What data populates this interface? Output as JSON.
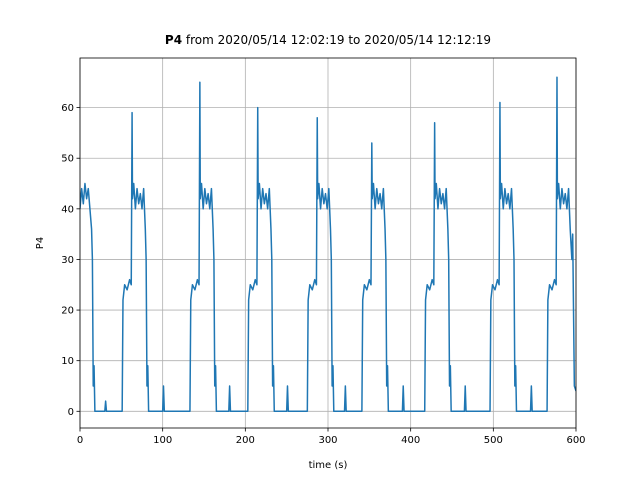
{
  "chart_data": {
    "type": "line",
    "title": [
      "P4",
      "from 2020/05/14 12:02:19 to 2020/05/14 12:12:19"
    ],
    "xlabel": "time (s)",
    "ylabel": "P4",
    "color": "#1f77b4",
    "grid": true,
    "xlim": [
      0,
      600
    ],
    "ylim": [
      -3.3,
      69.8
    ],
    "xticks": [
      0,
      100,
      200,
      300,
      400,
      500,
      600
    ],
    "yticks": [
      0,
      10,
      20,
      30,
      40,
      50,
      60
    ],
    "x": [
      0,
      2,
      4,
      6,
      8,
      10,
      12,
      14,
      15,
      16,
      17,
      18,
      30,
      31,
      32,
      50,
      51,
      52,
      54,
      57,
      60,
      62,
      63,
      63.5,
      65,
      67,
      69,
      71,
      73,
      75,
      77,
      79,
      80,
      81,
      82,
      83,
      100,
      101,
      102,
      120,
      133,
      134,
      136,
      139,
      142,
      144,
      145,
      145.5,
      147,
      149,
      151,
      153,
      155,
      157,
      159,
      161,
      162,
      163,
      164,
      165,
      180,
      181,
      182,
      202,
      203,
      204,
      206,
      209,
      212,
      214,
      215,
      215.5,
      217,
      219,
      221,
      223,
      225,
      227,
      229,
      231,
      232,
      233,
      234,
      235,
      250,
      251,
      252,
      274,
      275,
      276,
      278,
      281,
      284,
      286,
      287,
      287.5,
      289,
      291,
      293,
      295,
      297,
      299,
      301,
      303,
      304,
      305,
      306,
      307,
      320,
      321,
      322,
      340,
      341,
      342,
      344,
      347,
      350,
      352,
      353,
      353.5,
      355,
      357,
      359,
      361,
      363,
      365,
      367,
      369,
      370,
      371,
      372,
      373,
      390,
      391,
      392,
      416,
      417,
      418,
      420,
      423,
      426,
      428,
      429,
      429.5,
      431,
      433,
      435,
      437,
      439,
      441,
      443,
      445,
      446,
      447,
      448,
      449,
      465,
      466,
      467,
      495,
      496,
      497,
      499,
      502,
      505,
      507,
      508,
      508.5,
      510,
      512,
      514,
      516,
      518,
      520,
      522,
      524,
      525,
      526,
      527,
      528,
      545,
      546,
      547,
      564,
      565,
      566,
      568,
      571,
      574,
      576,
      577,
      577.5,
      579,
      581,
      583,
      585,
      587,
      589,
      591,
      593,
      595,
      596,
      597,
      598,
      600
    ],
    "values": [
      40,
      44,
      41,
      45,
      42,
      44,
      40,
      36,
      30,
      5,
      9,
      0,
      0,
      2,
      0,
      0,
      0,
      22,
      25,
      24,
      26,
      25,
      59,
      42,
      45,
      40,
      44,
      41,
      43,
      40,
      44,
      36,
      30,
      5,
      9,
      0,
      0,
      5,
      0,
      0,
      0,
      22,
      25,
      24,
      26,
      25,
      65,
      42,
      45,
      40,
      44,
      41,
      43,
      40,
      44,
      36,
      30,
      5,
      9,
      0,
      0,
      5,
      0,
      0,
      0,
      22,
      25,
      24,
      26,
      25,
      60,
      42,
      45,
      40,
      44,
      41,
      43,
      40,
      44,
      36,
      30,
      5,
      9,
      0,
      0,
      5,
      0,
      0,
      0,
      22,
      25,
      24,
      26,
      25,
      58,
      42,
      45,
      40,
      44,
      41,
      43,
      40,
      44,
      36,
      30,
      5,
      9,
      0,
      0,
      5,
      0,
      0,
      0,
      22,
      25,
      24,
      26,
      25,
      53,
      42,
      45,
      40,
      44,
      41,
      43,
      40,
      44,
      36,
      30,
      5,
      9,
      0,
      0,
      5,
      0,
      0,
      0,
      22,
      25,
      24,
      26,
      25,
      57,
      42,
      45,
      40,
      44,
      41,
      43,
      40,
      44,
      36,
      30,
      5,
      9,
      0,
      0,
      5,
      0,
      0,
      0,
      22,
      25,
      24,
      26,
      25,
      61,
      42,
      45,
      40,
      44,
      41,
      43,
      40,
      44,
      36,
      30,
      5,
      9,
      0,
      0,
      5,
      0,
      0,
      0,
      22,
      25,
      24,
      26,
      25,
      66,
      42,
      45,
      40,
      44,
      41,
      43,
      40,
      44,
      36,
      30,
      35,
      20,
      5,
      4
    ]
  }
}
